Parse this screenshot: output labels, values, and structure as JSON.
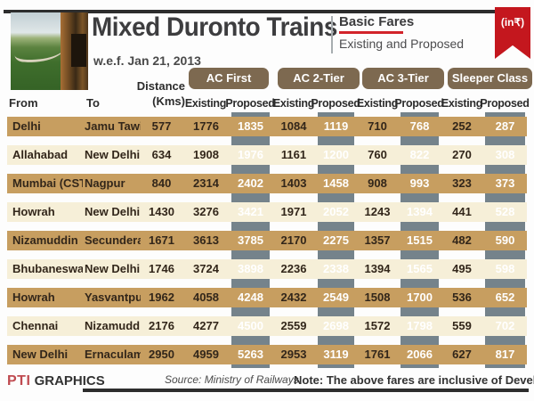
{
  "header": {
    "title": "Mixed Duronto Trains",
    "effective_date": "w.e.f. Jan 21, 2013",
    "subtitle_primary": "Basic Fares",
    "subtitle_secondary": "Existing and Proposed",
    "currency_badge": "(in₹)"
  },
  "table": {
    "column_headers": {
      "from": "From",
      "to": "To",
      "distance_line1": "Distance",
      "distance_line2": "(Kms)",
      "existing": "Existing",
      "proposed": "Proposed"
    },
    "class_groups": [
      "AC First",
      "AC 2-Tier",
      "AC 3-Tier",
      "Sleeper Class"
    ],
    "rows": [
      {
        "from": "Delhi",
        "to": "Jamu Tawi",
        "values": [
          "577",
          "1776",
          "1835",
          "1084",
          "1119",
          "710",
          "768",
          "252",
          "287"
        ]
      },
      {
        "from": "Allahabad",
        "to": "New Delhi",
        "values": [
          "634",
          "1908",
          "1976",
          "1161",
          "1200",
          "760",
          "822",
          "270",
          "308"
        ]
      },
      {
        "from": "Mumbai (CSTM)",
        "to": "Nagpur",
        "values": [
          "840",
          "2314",
          "2402",
          "1403",
          "1458",
          "908",
          "993",
          "323",
          "373"
        ]
      },
      {
        "from": "Howrah",
        "to": "New Delhi",
        "values": [
          "1430",
          "3276",
          "3421",
          "1971",
          "2052",
          "1243",
          "1394",
          "441",
          "528"
        ]
      },
      {
        "from": "Nizamuddin",
        "to": "Secunderabad",
        "values": [
          "1671",
          "3613",
          "3785",
          "2170",
          "2275",
          "1357",
          "1515",
          "482",
          "590"
        ]
      },
      {
        "from": "Bhubaneswar",
        "to": "New Delhi",
        "values": [
          "1746",
          "3724",
          "3898",
          "2236",
          "2338",
          "1394",
          "1565",
          "495",
          "598"
        ]
      },
      {
        "from": "Howrah",
        "to": "Yasvantpur",
        "values": [
          "1962",
          "4058",
          "4248",
          "2432",
          "2549",
          "1508",
          "1700",
          "536",
          "652"
        ]
      },
      {
        "from": "Chennai",
        "to": "Nizamuddin",
        "values": [
          "2176",
          "4277",
          "4500",
          "2559",
          "2698",
          "1572",
          "1798",
          "559",
          "702"
        ]
      },
      {
        "from": "New Delhi",
        "to": "Ernaculam",
        "values": [
          "2950",
          "4959",
          "5263",
          "2953",
          "3119",
          "1761",
          "2066",
          "627",
          "817"
        ]
      }
    ]
  },
  "footer": {
    "credit_logo": "PTI",
    "credit_text": "GRAPHICS",
    "source": "Source: Ministry of Railways",
    "note": "Note:  The above fares are inclusive of Development charg"
  },
  "colors": {
    "accent_red": "#c4171e",
    "pill_brown": "#7d6950",
    "row_tan": "#c79e60",
    "row_cream": "#f6efd8",
    "proposed_strip_gray": "#75838b"
  },
  "chart_data": {
    "type": "table",
    "title": "Mixed Duronto Trains",
    "subtitle": "Basic Fares — Existing and Proposed",
    "effective": "w.e.f. Jan 21, 2013",
    "unit": "INR (₹)",
    "columns": [
      "From",
      "To",
      "Distance (Kms)",
      "AC First Existing",
      "AC First Proposed",
      "AC 2-Tier Existing",
      "AC 2-Tier Proposed",
      "AC 3-Tier Existing",
      "AC 3-Tier Proposed",
      "Sleeper Class Existing",
      "Sleeper Class Proposed"
    ],
    "rows": [
      [
        "Delhi",
        "Jamu Tawi",
        577,
        1776,
        1835,
        1084,
        1119,
        710,
        768,
        252,
        287
      ],
      [
        "Allahabad",
        "New Delhi",
        634,
        1908,
        1976,
        1161,
        1200,
        760,
        822,
        270,
        308
      ],
      [
        "Mumbai (CSTM)",
        "Nagpur",
        840,
        2314,
        2402,
        1403,
        1458,
        908,
        993,
        323,
        373
      ],
      [
        "Howrah",
        "New Delhi",
        1430,
        3276,
        3421,
        1971,
        2052,
        1243,
        1394,
        441,
        528
      ],
      [
        "Nizamuddin",
        "Secunderabad",
        1671,
        3613,
        3785,
        2170,
        2275,
        1357,
        1515,
        482,
        590
      ],
      [
        "Bhubaneswar",
        "New Delhi",
        1746,
        3724,
        3898,
        2236,
        2338,
        1394,
        1565,
        495,
        598
      ],
      [
        "Howrah",
        "Yasvantpur",
        1962,
        4058,
        4248,
        2432,
        2549,
        1508,
        1700,
        536,
        652
      ],
      [
        "Chennai",
        "Nizamuddin",
        2176,
        4277,
        4500,
        2559,
        2698,
        1572,
        1798,
        559,
        702
      ],
      [
        "New Delhi",
        "Ernaculam",
        2950,
        4959,
        5263,
        2953,
        3119,
        1761,
        2066,
        627,
        817
      ]
    ],
    "source": "Ministry of Railways",
    "note": "The above fares are inclusive of Development charges"
  }
}
